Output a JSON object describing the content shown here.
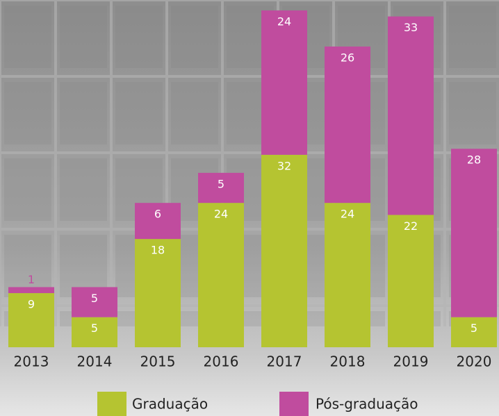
{
  "chart_data": {
    "type": "stacked-bar",
    "categories": [
      "2013",
      "2014",
      "2015",
      "2016",
      "2017",
      "2018",
      "2019",
      "2020"
    ],
    "series": [
      {
        "name": "Graduação",
        "color": "#b5c431",
        "values": [
          9,
          5,
          18,
          24,
          32,
          24,
          22,
          5
        ]
      },
      {
        "name": "Pós-graduação",
        "color": "#c04c9e",
        "values": [
          1,
          5,
          6,
          5,
          24,
          26,
          33,
          28
        ]
      }
    ]
  }
}
